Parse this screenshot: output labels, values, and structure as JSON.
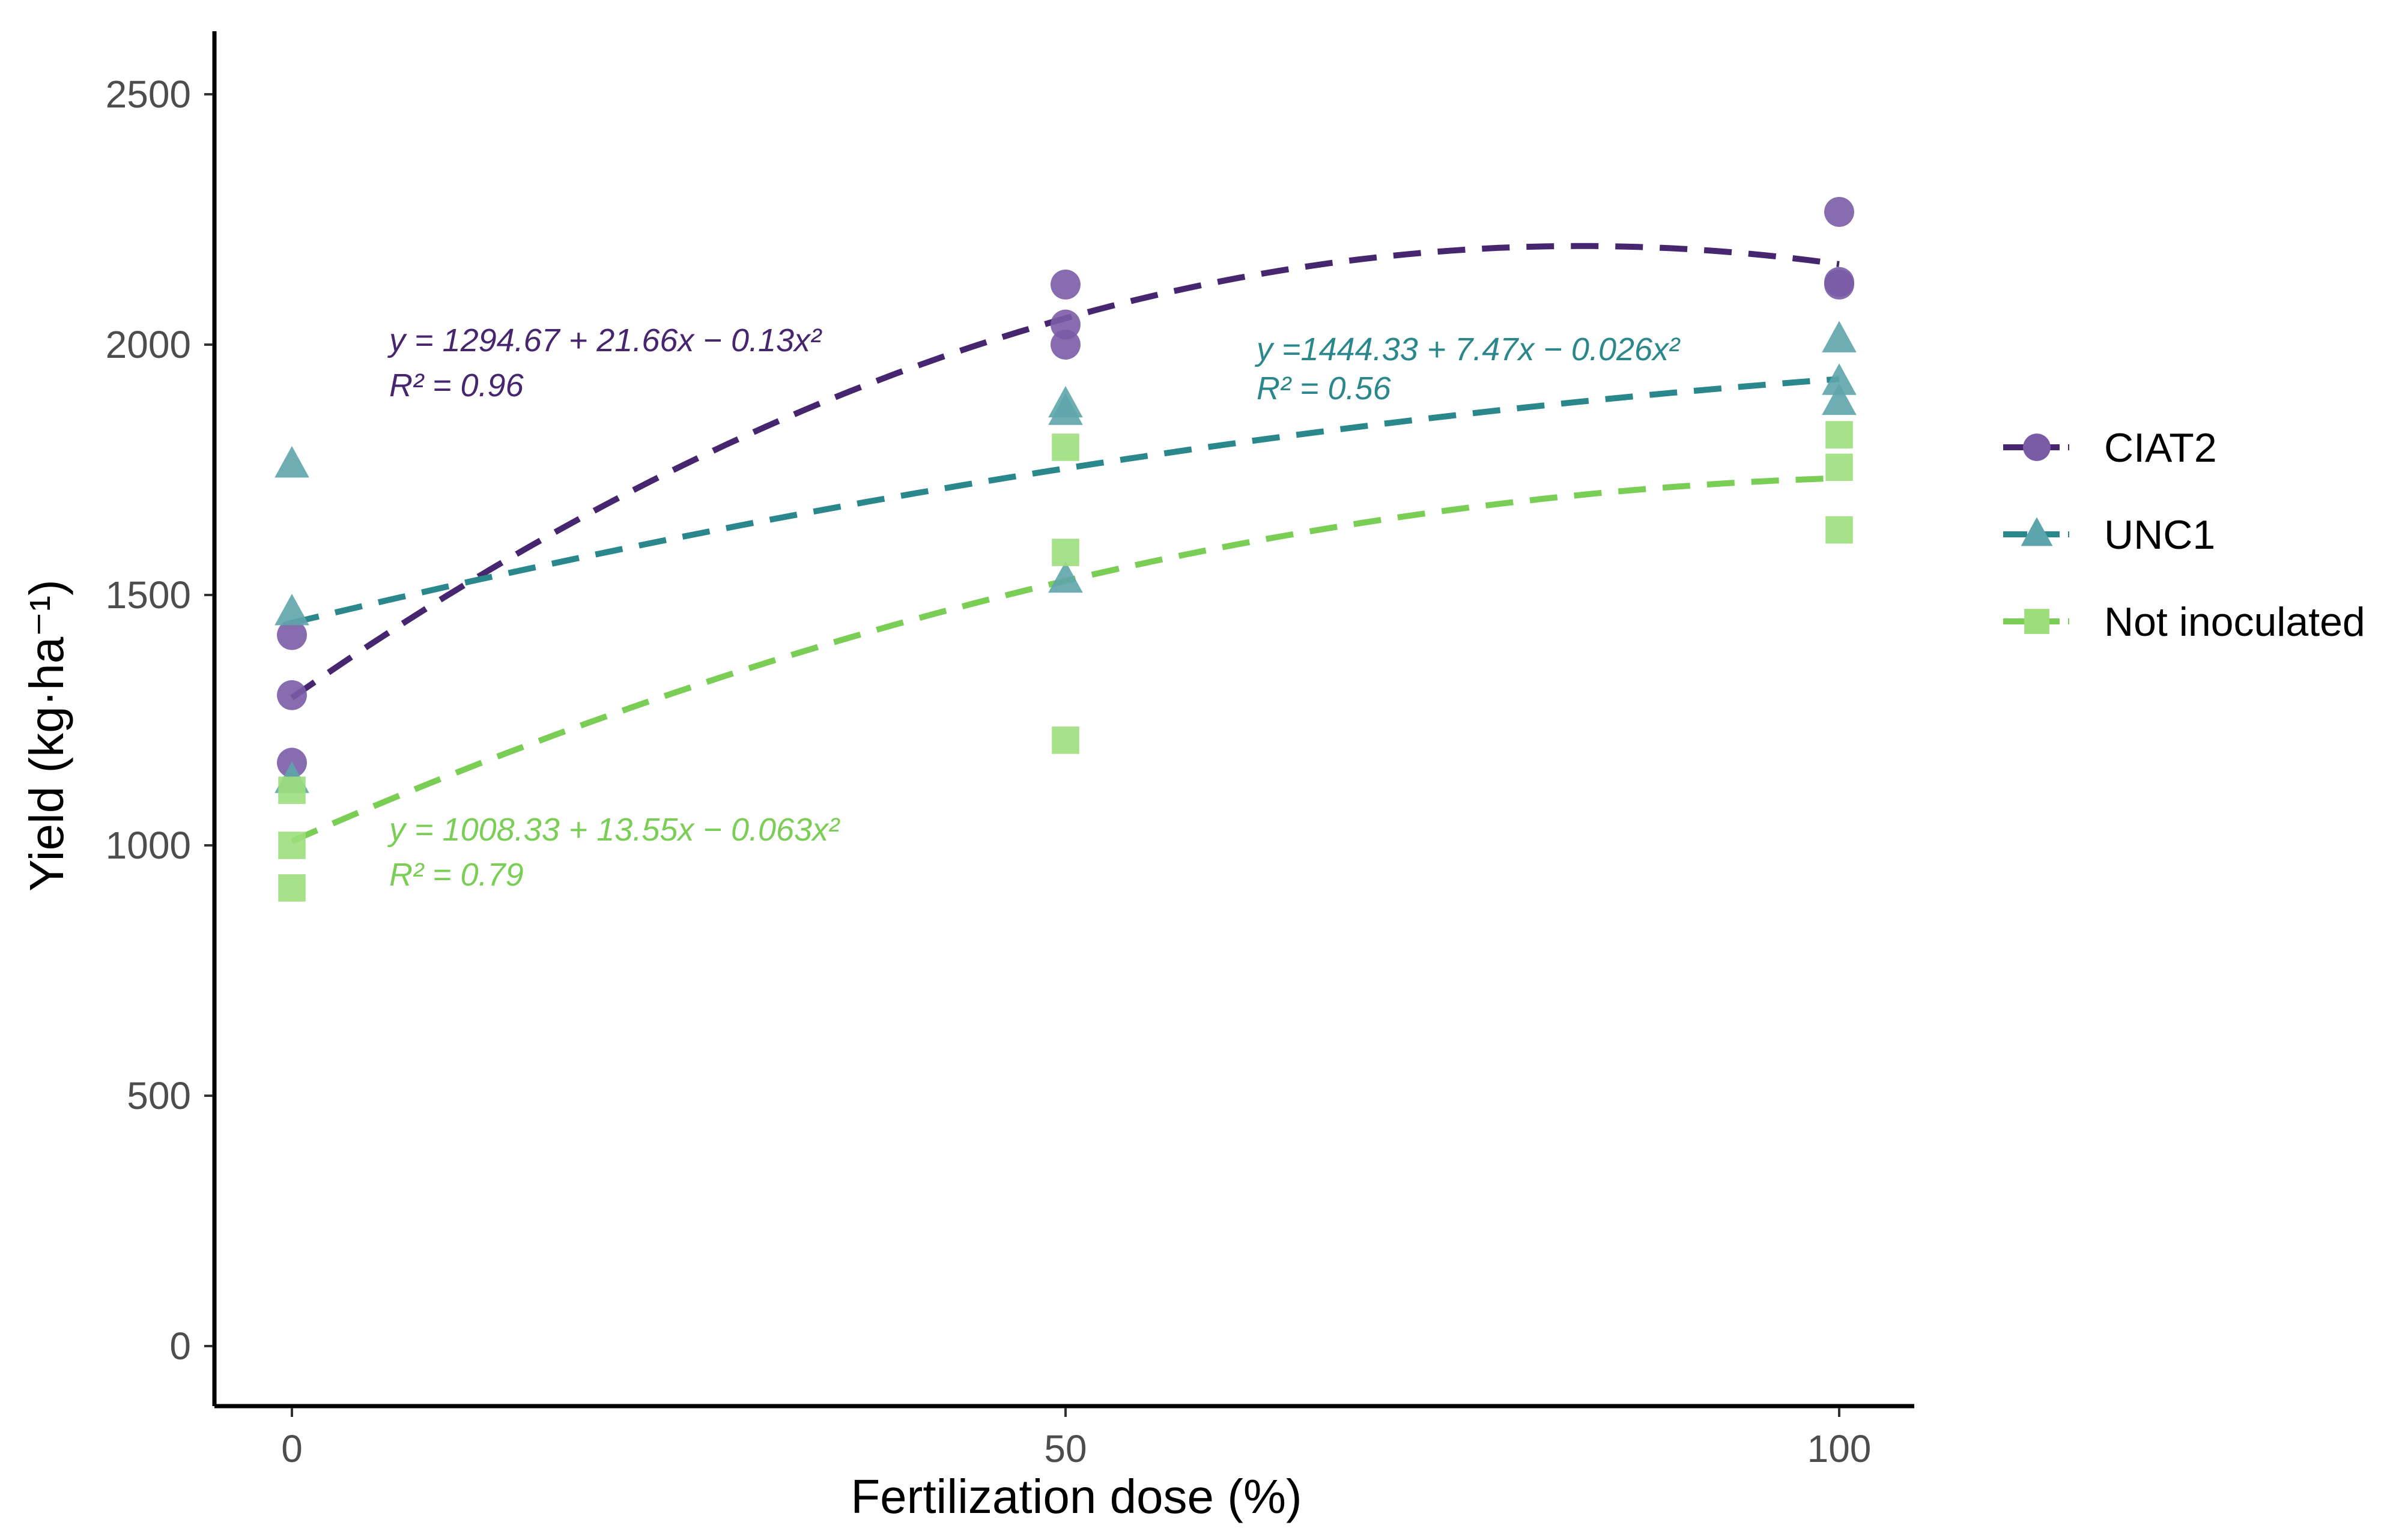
{
  "chart_data": {
    "type": "scatter",
    "title": "",
    "xlabel": "Fertilization dose (%)",
    "ylabel": "Yield (kg·ha⁻¹)",
    "xlim": [
      -5,
      105
    ],
    "ylim": [
      -125,
      2625
    ],
    "x_ticks": [
      0,
      50,
      100
    ],
    "y_ticks": [
      0,
      500,
      1000,
      1500,
      2000,
      2500
    ],
    "grid": false,
    "legend_position": "right",
    "series": [
      {
        "name": "CIAT2",
        "marker": "circle",
        "color": "#46266e",
        "point_color": "#7a5ca6",
        "points": [
          {
            "x": 0,
            "y": 1420
          },
          {
            "x": 0,
            "y": 1300
          },
          {
            "x": 0,
            "y": 1165
          },
          {
            "x": 50,
            "y": 2120
          },
          {
            "x": 50,
            "y": 2040
          },
          {
            "x": 50,
            "y": 2000
          },
          {
            "x": 100,
            "y": 2265
          },
          {
            "x": 100,
            "y": 2125
          },
          {
            "x": 100,
            "y": 2120
          }
        ],
        "fit": {
          "a": 1294.67,
          "b": 21.66,
          "c": -0.13
        },
        "equation": "y = 1294.67 + 21.66x − 0.13x²",
        "r2": "R² = 0.96"
      },
      {
        "name": "UNC1",
        "marker": "triangle",
        "color": "#2a878c",
        "point_color": "#5ea5ab",
        "points": [
          {
            "x": 0,
            "y": 1760
          },
          {
            "x": 0,
            "y": 1465
          },
          {
            "x": 0,
            "y": 1130
          },
          {
            "x": 50,
            "y": 1880
          },
          {
            "x": 50,
            "y": 1865
          },
          {
            "x": 50,
            "y": 1530
          },
          {
            "x": 100,
            "y": 2010
          },
          {
            "x": 100,
            "y": 1925
          },
          {
            "x": 100,
            "y": 1885
          }
        ],
        "fit": {
          "a": 1444.33,
          "b": 7.47,
          "c": -0.026
        },
        "equation": "y =1444.33 + 7.47x − 0.026x²",
        "r2": "R² = 0.56"
      },
      {
        "name": "Not inoculated",
        "marker": "square",
        "color": "#7ace55",
        "point_color": "#9dde7c",
        "points": [
          {
            "x": 0,
            "y": 1110
          },
          {
            "x": 0,
            "y": 1000
          },
          {
            "x": 0,
            "y": 915
          },
          {
            "x": 50,
            "y": 1795
          },
          {
            "x": 50,
            "y": 1585
          },
          {
            "x": 50,
            "y": 1210
          },
          {
            "x": 100,
            "y": 1820
          },
          {
            "x": 100,
            "y": 1755
          },
          {
            "x": 100,
            "y": 1630
          }
        ],
        "fit": {
          "a": 1008.33,
          "b": 13.55,
          "c": -0.063
        },
        "equation": "y = 1008.33 + 13.55x − 0.063x²",
        "r2": "R² = 0.79"
      }
    ]
  }
}
